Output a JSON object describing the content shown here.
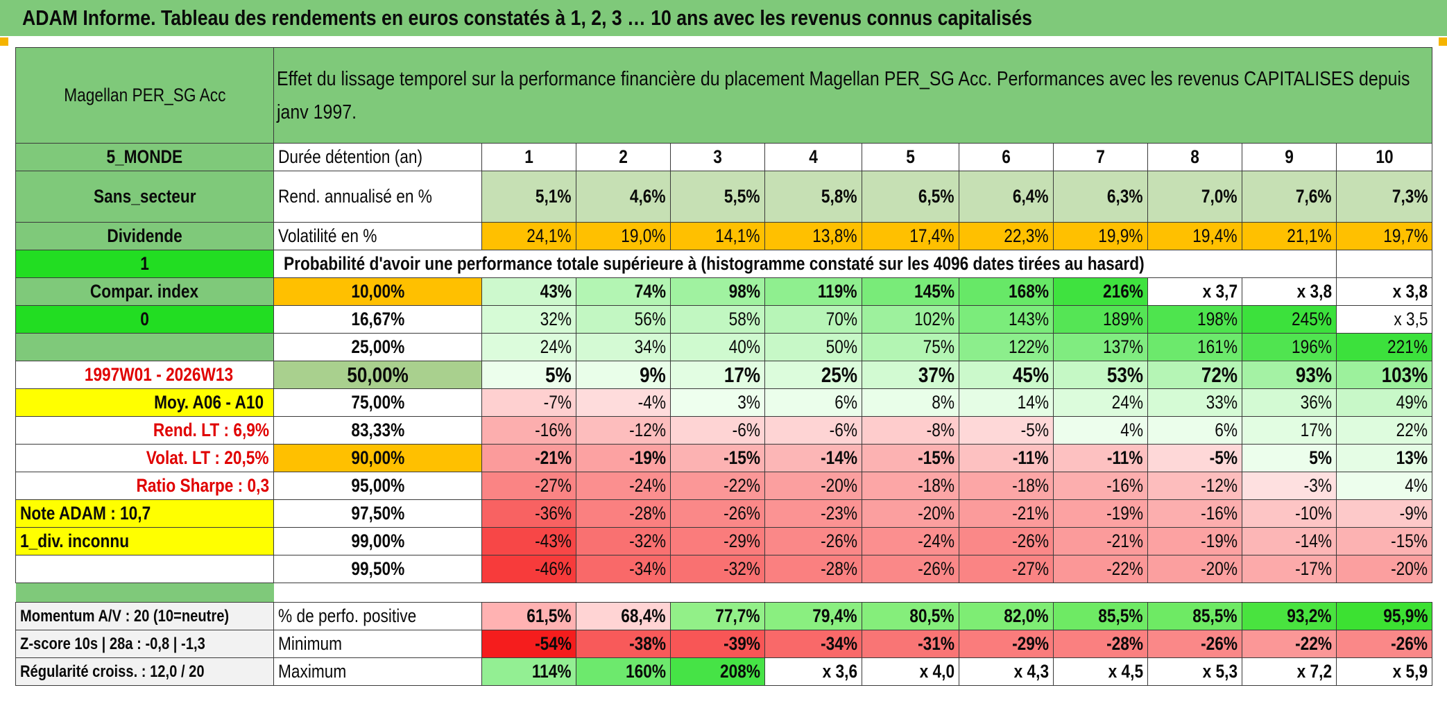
{
  "title": "ADAM Informe. Tableau des rendements en euros constatés à 1, 2, 3 … 10 ans avec les revenus connus capitalisés",
  "fund_name": "Magellan PER_SG Acc",
  "description": "Effet du lissage temporel sur la performance financière du placement Magellan PER_SG Acc. Performances avec les revenus CAPITALISES depuis janv 1997.",
  "side": {
    "zone": "5_MONDE",
    "secteur": "Sans_secteur",
    "dividende": "Dividende",
    "one": "1",
    "compar": "Compar. index",
    "zero": "0",
    "period": "1997W01 - 2026W13",
    "moy": "Moy. A06 - A10",
    "rend_lt": "Rend. LT :   6,9%",
    "volat_lt": "Volat. LT :   20,5%",
    "sharpe": "Ratio Sharpe :   0,3",
    "note": "Note ADAM : 10,7",
    "div": "1_div. inconnu",
    "momentum": "Momentum A/V : 20 (10=neutre)",
    "zscore": "Z-score 10s | 28a : -0,8 | -1,3",
    "regularite": "Régularité croiss. : 12,0 / 20"
  },
  "labels": {
    "duree": "Durée détention (an)",
    "rend": "Rend. annualisé en %",
    "volat": "Volatilité en %",
    "proba": "Probabilité d'avoir une performance totale supérieure à (histogramme constaté sur les 4096 dates tirées au hasard)",
    "perf_pos": "% de perfo. positive",
    "minimum": "Minimum",
    "maximum": "Maximum"
  },
  "years": [
    "1",
    "2",
    "3",
    "4",
    "5",
    "6",
    "7",
    "8",
    "9",
    "10"
  ],
  "rend": [
    "5,1%",
    "4,6%",
    "5,5%",
    "5,8%",
    "6,5%",
    "6,4%",
    "6,3%",
    "7,0%",
    "7,6%",
    "7,3%"
  ],
  "volat": [
    "24,1%",
    "19,0%",
    "14,1%",
    "13,8%",
    "17,4%",
    "22,3%",
    "19,9%",
    "19,4%",
    "21,1%",
    "19,7%"
  ],
  "proba_rows": [
    {
      "p": "10,00%",
      "v": [
        "43%",
        "74%",
        "98%",
        "119%",
        "145%",
        "168%",
        "216%",
        "x 3,7",
        "x 3,8",
        "x 3,8"
      ]
    },
    {
      "p": "16,67%",
      "v": [
        "32%",
        "56%",
        "58%",
        "70%",
        "102%",
        "143%",
        "189%",
        "198%",
        "245%",
        "x 3,5"
      ]
    },
    {
      "p": "25,00%",
      "v": [
        "24%",
        "34%",
        "40%",
        "50%",
        "75%",
        "122%",
        "137%",
        "161%",
        "196%",
        "221%"
      ]
    },
    {
      "p": "50,00%",
      "v": [
        "5%",
        "9%",
        "17%",
        "25%",
        "37%",
        "45%",
        "53%",
        "72%",
        "93%",
        "103%"
      ]
    },
    {
      "p": "75,00%",
      "v": [
        "-7%",
        "-4%",
        "3%",
        "6%",
        "8%",
        "14%",
        "24%",
        "33%",
        "36%",
        "49%"
      ]
    },
    {
      "p": "83,33%",
      "v": [
        "-16%",
        "-12%",
        "-6%",
        "-6%",
        "-8%",
        "-5%",
        "4%",
        "6%",
        "17%",
        "22%"
      ]
    },
    {
      "p": "90,00%",
      "v": [
        "-21%",
        "-19%",
        "-15%",
        "-14%",
        "-15%",
        "-11%",
        "-11%",
        "-5%",
        "5%",
        "13%"
      ]
    },
    {
      "p": "95,00%",
      "v": [
        "-27%",
        "-24%",
        "-22%",
        "-20%",
        "-18%",
        "-18%",
        "-16%",
        "-12%",
        "-3%",
        "4%"
      ]
    },
    {
      "p": "97,50%",
      "v": [
        "-36%",
        "-28%",
        "-26%",
        "-23%",
        "-20%",
        "-21%",
        "-19%",
        "-16%",
        "-10%",
        "-9%"
      ]
    },
    {
      "p": "99,00%",
      "v": [
        "-43%",
        "-32%",
        "-29%",
        "-26%",
        "-24%",
        "-26%",
        "-21%",
        "-19%",
        "-14%",
        "-15%"
      ]
    },
    {
      "p": "99,50%",
      "v": [
        "-46%",
        "-34%",
        "-32%",
        "-28%",
        "-26%",
        "-27%",
        "-22%",
        "-20%",
        "-17%",
        "-20%"
      ]
    }
  ],
  "perf_pos": [
    "61,5%",
    "68,4%",
    "77,7%",
    "79,4%",
    "80,5%",
    "82,0%",
    "85,5%",
    "85,5%",
    "93,2%",
    "95,9%"
  ],
  "minimum": [
    "-54%",
    "-38%",
    "-39%",
    "-34%",
    "-31%",
    "-29%",
    "-28%",
    "-26%",
    "-22%",
    "-26%"
  ],
  "maximum": [
    "114%",
    "160%",
    "208%",
    "x 3,6",
    "x 4,0",
    "x 4,3",
    "x 4,5",
    "x 5,3",
    "x 7,2",
    "x 5,9"
  ],
  "colors": {
    "header_green": "#7fc97a",
    "bright_green": "#22dd22",
    "orange": "#ffc000",
    "yellow": "#ffff00",
    "label_red": "#e00000"
  }
}
